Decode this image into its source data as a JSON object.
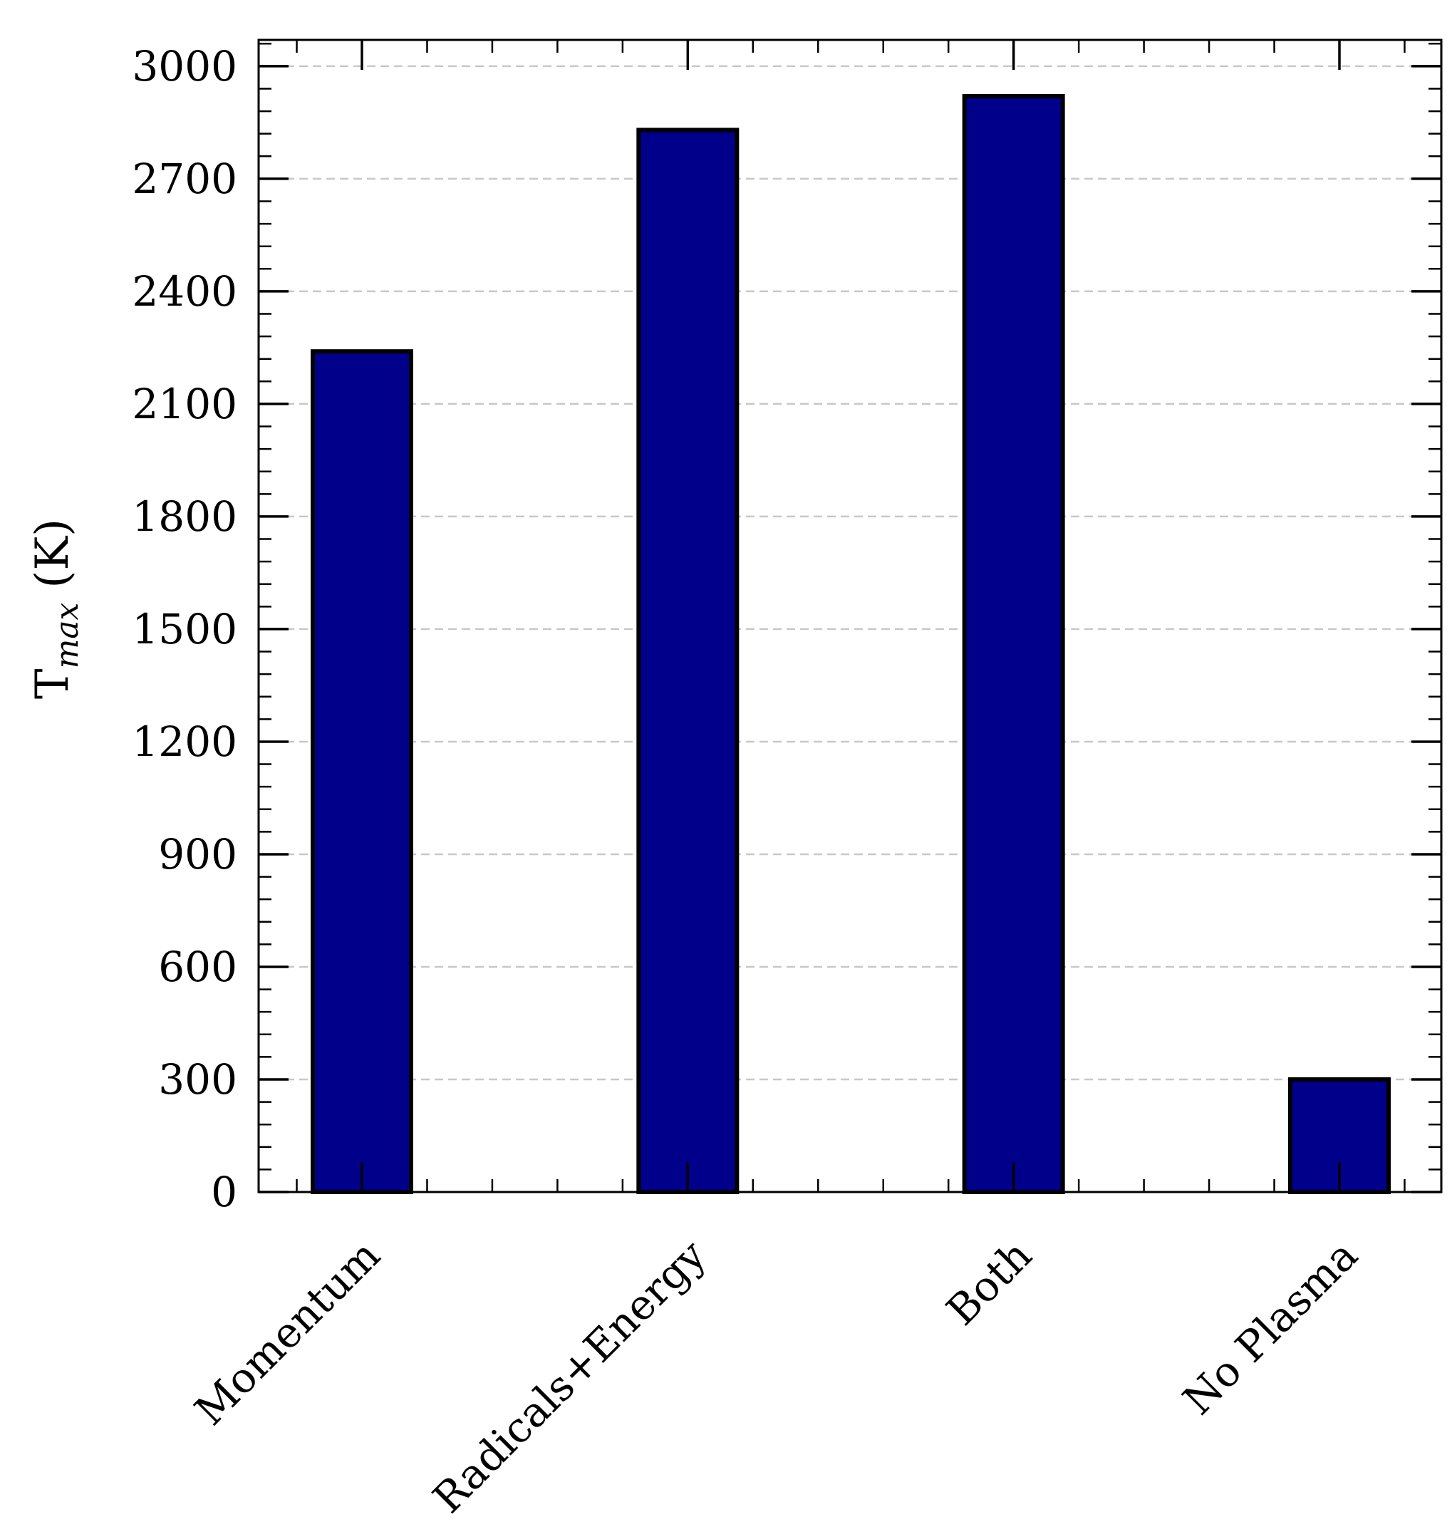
{
  "chart_data": {
    "type": "bar",
    "categories": [
      "Momentum",
      "Radicals+Energy",
      "Both",
      "No Plasma"
    ],
    "values": [
      2240,
      2830,
      2920,
      300
    ],
    "title": "",
    "xlabel": "",
    "ylabel": {
      "main": "T",
      "subscript": "max",
      "unit": "(K)"
    },
    "ylim": [
      0,
      3070
    ],
    "yticks": [
      0,
      300,
      600,
      900,
      1200,
      1500,
      1800,
      2100,
      2400,
      2700,
      3000
    ],
    "grid": "y-major, dashed",
    "legend": "none",
    "colors": {
      "bar_fill": "#00008B",
      "bar_edge": "#000000",
      "grid": "#c8c8c8",
      "axis": "#000000"
    }
  }
}
